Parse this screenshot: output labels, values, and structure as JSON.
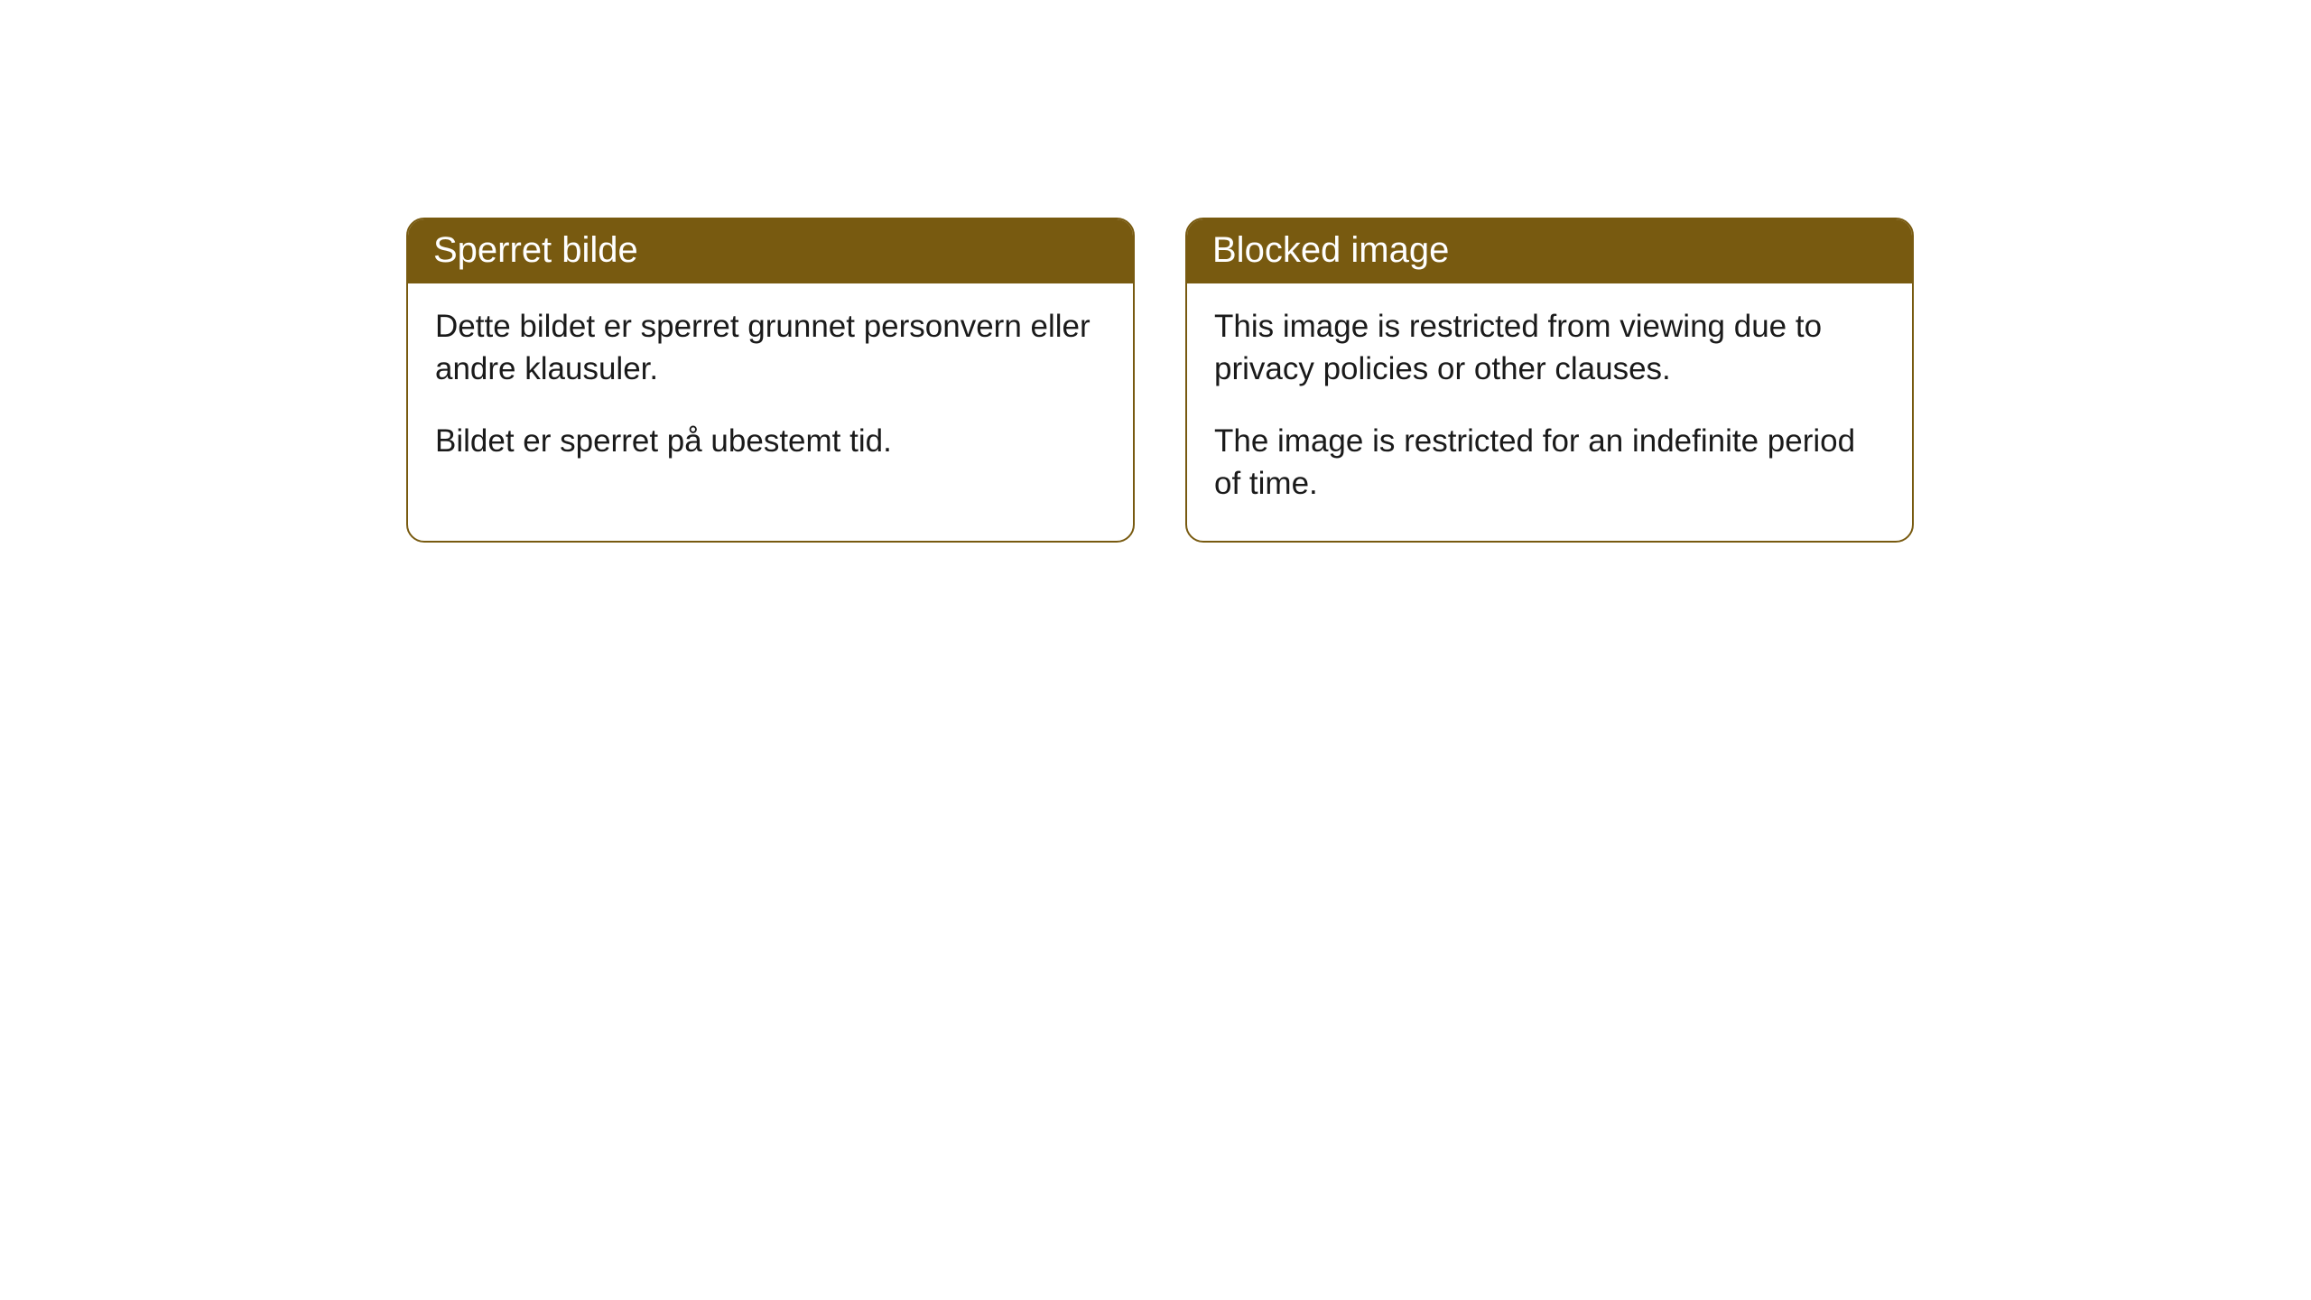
{
  "cards": [
    {
      "title": "Sperret bilde",
      "paragraph1": "Dette bildet er sperret grunnet personvern eller andre klausuler.",
      "paragraph2": "Bildet er sperret på ubestemt tid."
    },
    {
      "title": "Blocked image",
      "paragraph1": "This image is restricted from viewing due to privacy policies or other clauses.",
      "paragraph2": "The image is restricted for an indefinite period of time."
    }
  ],
  "style": {
    "header_bg_color": "#785a10",
    "header_text_color": "#ffffff",
    "border_color": "#785a10",
    "body_bg_color": "#ffffff",
    "body_text_color": "#1a1a1a",
    "border_radius": 20,
    "title_fontsize": 40,
    "body_fontsize": 35
  }
}
